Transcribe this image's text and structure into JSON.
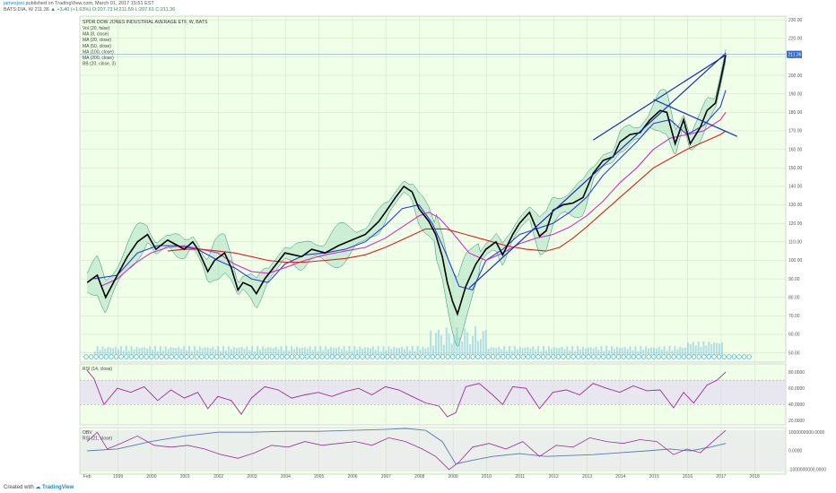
{
  "header": {
    "author": "jamesjwu",
    "published": "published on TradingView.com, March 01, 2017 15:51 EST",
    "symbol": "BATS:DIA, W",
    "last": "211.36",
    "change": "▲ +3.40 (+1.63%)",
    "open": "O:207.73",
    "high": "H:211.59",
    "low": "L:207.61",
    "close": "C:211.36"
  },
  "footer": {
    "created_with": "Created with",
    "brand": "TradingView"
  },
  "colors": {
    "background": "#efffe8",
    "price": "#000000",
    "ma_blue": "#2c3ee0",
    "ma_magenta": "#d42cd4",
    "ma_red": "#e01e1e",
    "bands": "#2b8a7a",
    "trendline": "#1a2cbe",
    "rsi": "#9c2f9c",
    "obv": "#5a78b0",
    "volume": "#7fc3e3"
  },
  "chart_data": [
    {
      "type": "line",
      "title": "SPDR DOW JONES INDUSTRIAL AVERAGE ETF, W, BATS",
      "legend": [
        "Vol (20, false)",
        "MA (8, close)",
        "MA (20, close)",
        "MA (50, close)",
        "MA (100, close)",
        "MA (200, close)",
        "BB (20, close, 3)"
      ],
      "x_ticks": [
        "Feb",
        "1999",
        "2000",
        "2001",
        "2002",
        "2003",
        "2004",
        "2005",
        "2006",
        "2007",
        "2008",
        "2009",
        "2010",
        "2011",
        "2012",
        "2013",
        "2014",
        "2015",
        "2016",
        "2017",
        "2018"
      ],
      "y_ticks": [
        50,
        60,
        70,
        80,
        90,
        100,
        110,
        120,
        130,
        140,
        150,
        160,
        170,
        180,
        190,
        200,
        210,
        220,
        230
      ],
      "ylim": [
        45,
        232
      ],
      "last_price_label": "211.36",
      "series": [
        {
          "name": "price",
          "x": [
            1998.1,
            1998.4,
            1998.65,
            1999.0,
            1999.3,
            1999.6,
            1999.9,
            2000.15,
            2000.5,
            2000.8,
            2001.0,
            2001.25,
            2001.4,
            2001.7,
            2001.9,
            2002.2,
            2002.4,
            2002.6,
            2002.75,
            2003.0,
            2003.15,
            2003.4,
            2003.7,
            2004.0,
            2004.5,
            2004.8,
            2005.2,
            2005.6,
            2006.0,
            2006.4,
            2006.8,
            2007.0,
            2007.3,
            2007.55,
            2007.8,
            2008.0,
            2008.3,
            2008.5,
            2008.7,
            2008.85,
            2009.0,
            2009.15,
            2009.4,
            2009.7,
            2010.0,
            2010.3,
            2010.5,
            2010.8,
            2011.0,
            2011.3,
            2011.6,
            2011.8,
            2012.0,
            2012.3,
            2012.6,
            2012.9,
            2013.2,
            2013.5,
            2013.8,
            2014.0,
            2014.3,
            2014.6,
            2014.9,
            2015.2,
            2015.4,
            2015.65,
            2015.9,
            2016.1,
            2016.4,
            2016.6,
            2016.85,
            2017.0,
            2017.16
          ],
          "y": [
            88,
            92,
            80,
            92,
            102,
            110,
            114,
            106,
            111,
            108,
            106,
            110,
            106,
            94,
            100,
            104,
            96,
            84,
            88,
            86,
            82,
            90,
            97,
            104,
            102,
            106,
            104,
            108,
            111,
            114,
            121,
            126,
            134,
            140,
            137,
            128,
            121,
            114,
            102,
            88,
            78,
            71,
            86,
            98,
            106,
            110,
            103,
            114,
            120,
            126,
            113,
            116,
            127,
            130,
            131,
            134,
            147,
            154,
            156,
            164,
            168,
            169,
            176,
            181,
            180,
            163,
            176,
            163,
            172,
            181,
            185,
            197,
            211
          ]
        },
        {
          "name": "MA (20, close)",
          "x": [
            1998.3,
            1999.0,
            1999.6,
            2000.2,
            2000.8,
            2001.4,
            2002.0,
            2002.5,
            2003.0,
            2003.5,
            2004.0,
            2004.6,
            2005.2,
            2005.8,
            2006.4,
            2007.0,
            2007.5,
            2008.0,
            2008.4,
            2008.8,
            2009.2,
            2009.6,
            2010.0,
            2010.5,
            2011.0,
            2011.5,
            2012.0,
            2012.5,
            2013.0,
            2013.5,
            2014.0,
            2014.5,
            2015.0,
            2015.5,
            2016.0,
            2016.5,
            2017.0,
            2017.16
          ],
          "y": [
            90,
            92,
            104,
            108,
            108,
            106,
            100,
            96,
            90,
            88,
            98,
            103,
            104,
            106,
            110,
            119,
            128,
            130,
            120,
            104,
            86,
            84,
            100,
            106,
            114,
            117,
            120,
            126,
            134,
            146,
            155,
            164,
            174,
            176,
            168,
            173,
            183,
            192
          ]
        },
        {
          "name": "MA (50, close)",
          "x": [
            1998.5,
            1999.0,
            1999.5,
            2000.0,
            2000.5,
            2001.0,
            2001.5,
            2002.0,
            2002.5,
            2003.0,
            2003.5,
            2004.0,
            2004.6,
            2005.2,
            2005.8,
            2006.4,
            2007.0,
            2007.5,
            2008.0,
            2008.3,
            2008.6,
            2009.0,
            2009.5,
            2010.0,
            2010.5,
            2011.0,
            2011.5,
            2012.0,
            2012.5,
            2013.0,
            2013.5,
            2014.0,
            2014.5,
            2015.0,
            2015.5,
            2016.0,
            2016.5,
            2017.0,
            2017.16
          ],
          "y": [
            86,
            90,
            98,
            104,
            107,
            108,
            106,
            104,
            98,
            94,
            93,
            96,
            100,
            103,
            105,
            107,
            112,
            118,
            124,
            126,
            123,
            115,
            104,
            100,
            104,
            109,
            112,
            114,
            118,
            124,
            132,
            142,
            150,
            160,
            166,
            168,
            170,
            176,
            180
          ]
        },
        {
          "name": "MA (200, close)",
          "x": [
            2000.5,
            2001.0,
            2001.5,
            2002.0,
            2002.5,
            2003.0,
            2003.5,
            2004.0,
            2004.6,
            2005.2,
            2005.8,
            2006.4,
            2007.0,
            2007.6,
            2008.2,
            2008.8,
            2009.4,
            2010.0,
            2010.6,
            2011.2,
            2011.8,
            2012.2,
            2012.6,
            2013.0,
            2013.5,
            2014.0,
            2014.5,
            2015.0,
            2015.5,
            2016.0,
            2016.5,
            2017.0,
            2017.16
          ],
          "y": [
            105,
            106,
            106,
            105,
            104,
            102,
            100,
            99,
            99,
            100,
            101,
            103,
            107,
            112,
            117,
            117,
            114,
            111,
            108,
            106,
            105,
            107,
            112,
            118,
            126,
            134,
            142,
            150,
            155,
            160,
            164,
            168,
            170
          ]
        }
      ],
      "trendlines": [
        {
          "x": [
            2013.2,
            2017.16
          ],
          "y": [
            165,
            211
          ]
        },
        {
          "x": [
            2009.5,
            2017.16
          ],
          "y": [
            85,
            212
          ]
        },
        {
          "x": [
            2015.0,
            2017.5
          ],
          "y": [
            187,
            167
          ]
        }
      ]
    },
    {
      "type": "line",
      "title": "RSI (14, close)",
      "y_ticks": [
        "80.0000",
        "60.0000",
        "40.0000",
        "20.0000"
      ],
      "ylim": [
        15,
        90
      ],
      "band": [
        40,
        70
      ],
      "series": [
        {
          "name": "RSI (14, close)",
          "x": [
            1998.1,
            1998.3,
            1998.6,
            1999.0,
            1999.4,
            1999.8,
            2000.2,
            2000.6,
            2001.0,
            2001.4,
            2001.7,
            2002.0,
            2002.4,
            2002.7,
            2003.0,
            2003.4,
            2003.8,
            2004.2,
            2004.6,
            2005.0,
            2005.4,
            2005.8,
            2006.2,
            2006.6,
            2007.0,
            2007.4,
            2007.8,
            2008.2,
            2008.6,
            2008.85,
            2009.1,
            2009.4,
            2009.8,
            2010.2,
            2010.5,
            2010.8,
            2011.2,
            2011.6,
            2012.0,
            2012.4,
            2012.8,
            2013.2,
            2013.6,
            2014.0,
            2014.4,
            2014.8,
            2015.2,
            2015.6,
            2015.9,
            2016.2,
            2016.6,
            2016.9,
            2017.16
          ],
          "y": [
            82,
            72,
            40,
            60,
            55,
            62,
            45,
            58,
            48,
            55,
            35,
            50,
            45,
            28,
            48,
            62,
            58,
            48,
            52,
            55,
            50,
            56,
            60,
            52,
            62,
            58,
            50,
            42,
            38,
            25,
            30,
            62,
            66,
            52,
            40,
            62,
            60,
            35,
            55,
            58,
            52,
            66,
            60,
            55,
            63,
            57,
            58,
            36,
            55,
            42,
            64,
            70,
            80
          ]
        }
      ]
    },
    {
      "type": "line",
      "title": "OBV",
      "legend": [
        "OBV",
        "RSI (21, close)"
      ],
      "y_ticks": [
        "1000000000.0000",
        "0.0000",
        "-1000000000.0000"
      ],
      "ylim": [
        -1250000000,
        1250000000
      ],
      "series": [
        {
          "name": "OBV",
          "x": [
            1998.1,
            1999.0,
            2000.0,
            2001.0,
            2002.0,
            2003.0,
            2004.0,
            2005.0,
            2006.0,
            2007.0,
            2007.6,
            2008.2,
            2008.7,
            2009.1,
            2009.6,
            2010.2,
            2011.0,
            2011.8,
            2012.5,
            2013.2,
            2014.0,
            2014.8,
            2015.5,
            2016.1,
            2016.7,
            2017.16
          ],
          "y": [
            0,
            100000000,
            500000000,
            800000000,
            1000000000,
            1000000000,
            1050000000,
            1050000000,
            1100000000,
            1150000000,
            1200000000,
            1100000000,
            500000000,
            -700000000,
            -500000000,
            -300000000,
            -150000000,
            -300000000,
            -250000000,
            -200000000,
            -100000000,
            0,
            100000000,
            0,
            200000000,
            400000000
          ]
        },
        {
          "name": "RSI (21, close)",
          "x": [
            1998.1,
            1998.4,
            1998.7,
            1999.1,
            1999.6,
            2000.1,
            2000.6,
            2001.1,
            2001.6,
            2002.1,
            2002.6,
            2003.1,
            2003.6,
            2004.1,
            2004.6,
            2005.1,
            2005.6,
            2006.1,
            2006.6,
            2007.1,
            2007.6,
            2008.1,
            2008.5,
            2008.9,
            2009.2,
            2009.6,
            2010.1,
            2010.6,
            2011.1,
            2011.6,
            2012.1,
            2012.6,
            2013.1,
            2013.6,
            2014.1,
            2014.6,
            2015.1,
            2015.6,
            2016.0,
            2016.4,
            2016.9,
            2017.16
          ],
          "y": [
            500000000,
            1000000000,
            100000000,
            400000000,
            800000000,
            300000000,
            200000000,
            300000000,
            100000000,
            -200000000,
            -400000000,
            -100000000,
            300000000,
            200000000,
            500000000,
            300000000,
            400000000,
            500000000,
            300000000,
            700000000,
            500000000,
            100000000,
            -300000000,
            -1000000000,
            -600000000,
            200000000,
            400000000,
            100000000,
            500000000,
            -300000000,
            300000000,
            200000000,
            700000000,
            500000000,
            400000000,
            600000000,
            500000000,
            -200000000,
            100000000,
            -100000000,
            700000000,
            1100000000
          ]
        }
      ]
    }
  ]
}
